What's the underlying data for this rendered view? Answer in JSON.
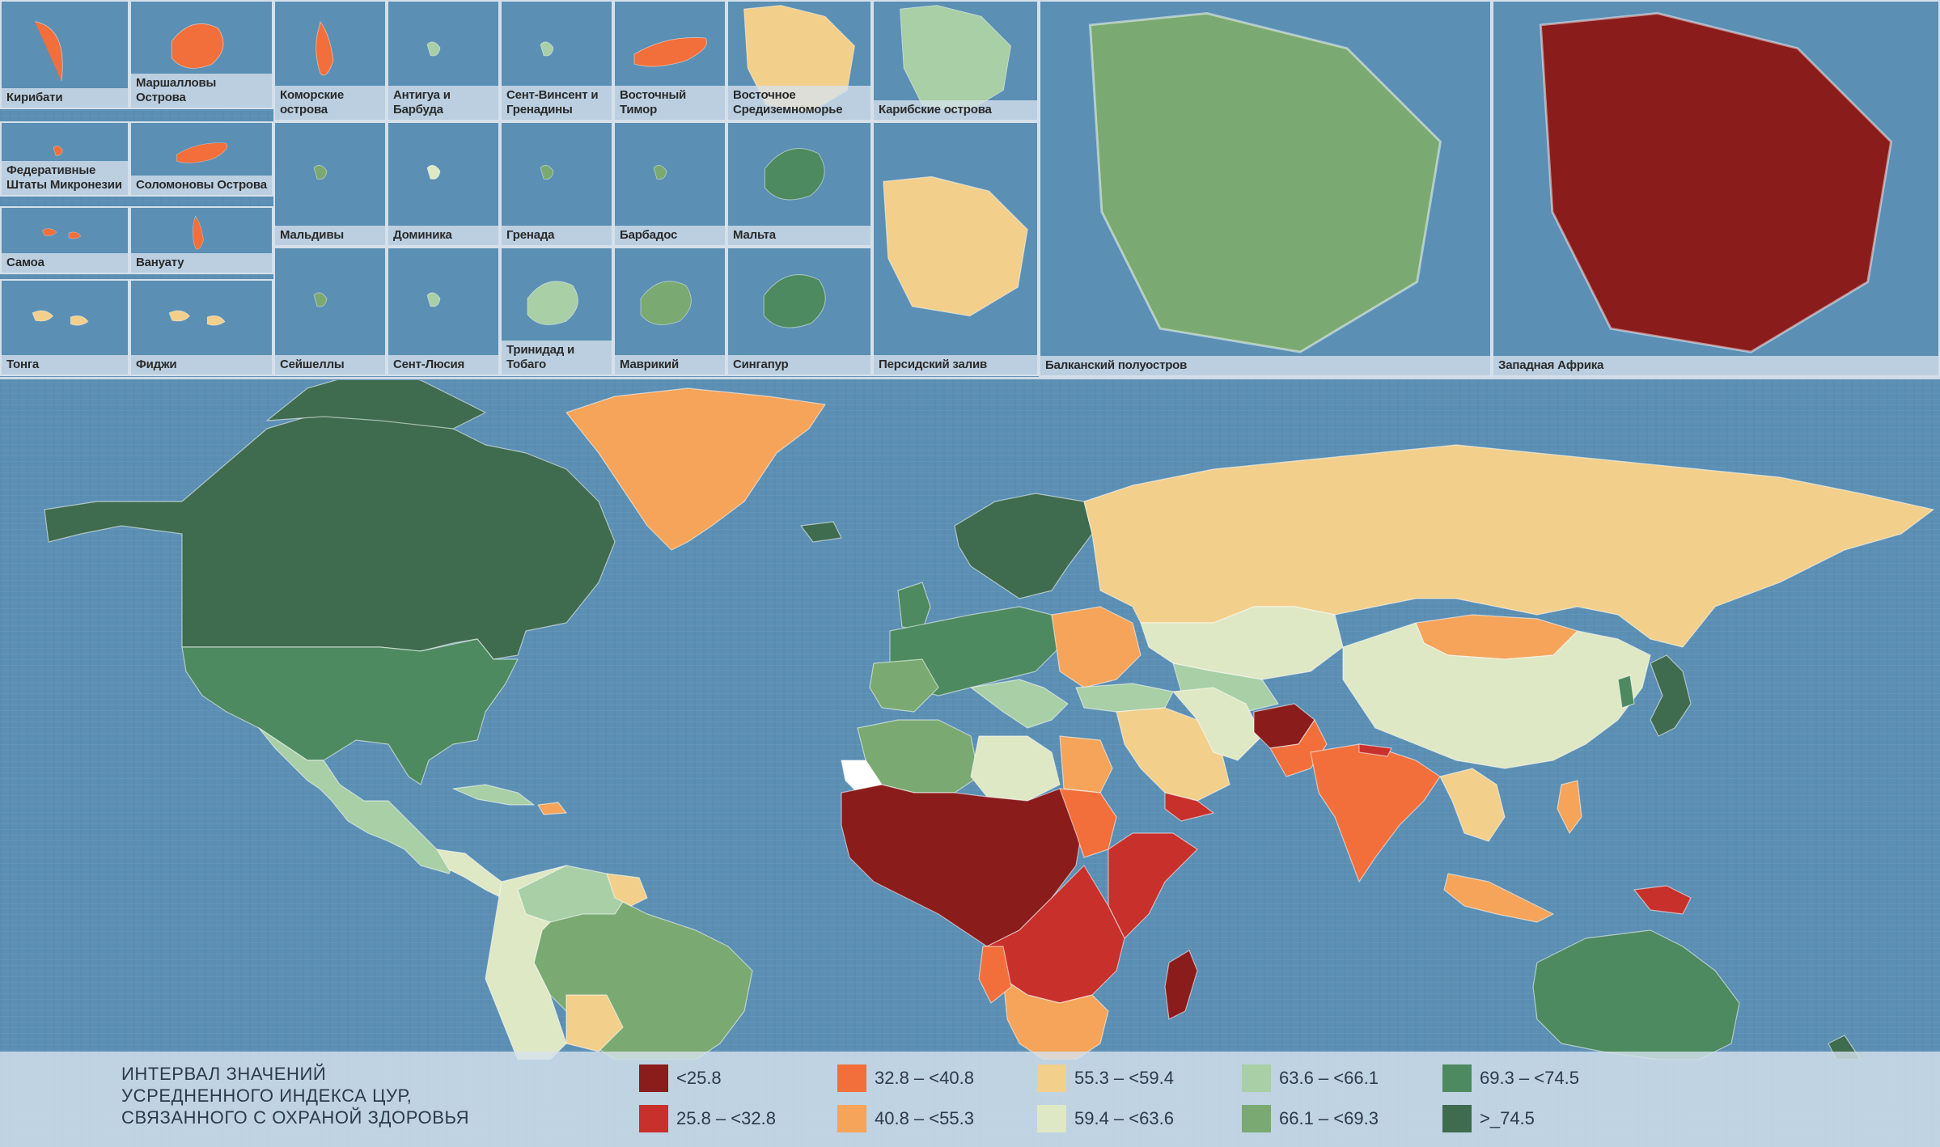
{
  "colors": {
    "ocean": "#5b8fb4",
    "lt25_8": "#8b1c1c",
    "r25_8_32_8": "#c8302c",
    "r32_8_40_8": "#f26f3b",
    "r40_8_55_3": "#f6a45a",
    "r55_3_59_4": "#f2d08c",
    "r59_4_63_6": "#dfe8c4",
    "r63_6_66_1": "#a8cfa6",
    "r66_1_69_3": "#7aaa72",
    "r69_3_74_5": "#4d8a5f",
    "gt74_5": "#3f6b4f",
    "no_data": "#ffffff"
  },
  "insets": [
    {
      "label": "Кирибати",
      "icon": "island-chain-icon",
      "fill": "#f26f3b"
    },
    {
      "label": "Маршалловы Острова",
      "icon": "island-icon",
      "fill": "#f26f3b"
    },
    {
      "label": "Федеративные Штаты Микронезии",
      "icon": "island-icon",
      "fill": "#f26f3b"
    },
    {
      "label": "Соломоновы Острова",
      "icon": "island-icon",
      "fill": "#f26f3b"
    },
    {
      "label": "Самоа",
      "icon": "island-icon",
      "fill": "#f26f3b"
    },
    {
      "label": "Вануату",
      "icon": "island-icon",
      "fill": "#f26f3b"
    },
    {
      "label": "Тонга",
      "icon": "island-icon",
      "fill": "#f2d08c"
    },
    {
      "label": "Фиджи",
      "icon": "island-icon",
      "fill": "#f2d08c"
    },
    {
      "label": "Коморские острова",
      "icon": "island-icon",
      "fill": "#f26f3b"
    },
    {
      "label": "Антигуа и Барбуда",
      "icon": "island-icon",
      "fill": "#a8cfa6"
    },
    {
      "label": "Сент-Винсент и Гренадины",
      "icon": "island-icon",
      "fill": "#a8cfa6"
    },
    {
      "label": "Восточный Тимор",
      "icon": "island-icon",
      "fill": "#f26f3b"
    },
    {
      "label": "Восточное Средиземноморье",
      "icon": "region-icon",
      "fill": "#f2d08c"
    },
    {
      "label": "Карибские острова",
      "icon": "region-icon",
      "fill": "#a8cfa6"
    },
    {
      "label": "Мальдивы",
      "icon": "island-icon",
      "fill": "#7aaa72"
    },
    {
      "label": "Доминика",
      "icon": "island-icon",
      "fill": "#dfe8c4"
    },
    {
      "label": "Гренада",
      "icon": "island-icon",
      "fill": "#7aaa72"
    },
    {
      "label": "Барбадос",
      "icon": "island-icon",
      "fill": "#7aaa72"
    },
    {
      "label": "Мальта",
      "icon": "island-icon",
      "fill": "#4d8a5f"
    },
    {
      "label": "Сейшеллы",
      "icon": "island-icon",
      "fill": "#7aaa72"
    },
    {
      "label": "Сент-Люсия",
      "icon": "island-icon",
      "fill": "#a8cfa6"
    },
    {
      "label": "Тринидад и Тобаго",
      "icon": "island-icon",
      "fill": "#a8cfa6"
    },
    {
      "label": "Маврикий",
      "icon": "island-icon",
      "fill": "#7aaa72"
    },
    {
      "label": "Сингапур",
      "icon": "island-icon",
      "fill": "#4d8a5f"
    },
    {
      "label": "Персидский залив",
      "icon": "region-icon",
      "fill": "#f2d08c"
    },
    {
      "label": "Балканский полуостров",
      "icon": "region-icon",
      "fill": "#7aaa72"
    },
    {
      "label": "Западная Африка",
      "icon": "region-icon",
      "fill": "#8b1c1c"
    }
  ],
  "legend": {
    "title_line1": "ИНТЕРВАЛ ЗНАЧЕНИЙ",
    "title_line2": "УСРЕДНЕННОГО ИНДЕКСА ЦУР,",
    "title_line3": "СВЯЗАННОГО С ОХРАНОЙ ЗДОРОВЬЯ",
    "items": [
      {
        "label": "<25.8",
        "color": "#8b1c1c"
      },
      {
        "label": "25.8 – <32.8",
        "color": "#c8302c"
      },
      {
        "label": "32.8 – <40.8",
        "color": "#f26f3b"
      },
      {
        "label": "40.8 – <55.3",
        "color": "#f6a45a"
      },
      {
        "label": "55.3 – <59.4",
        "color": "#f2d08c"
      },
      {
        "label": "59.4 – <63.6",
        "color": "#dfe8c4"
      },
      {
        "label": "63.6 – <66.1",
        "color": "#a8cfa6"
      },
      {
        "label": "66.1 – <69.3",
        "color": "#7aaa72"
      },
      {
        "label": "69.3 – <74.5",
        "color": "#4d8a5f"
      },
      {
        "label": ">_74.5",
        "color": "#3f6b4f"
      }
    ]
  }
}
